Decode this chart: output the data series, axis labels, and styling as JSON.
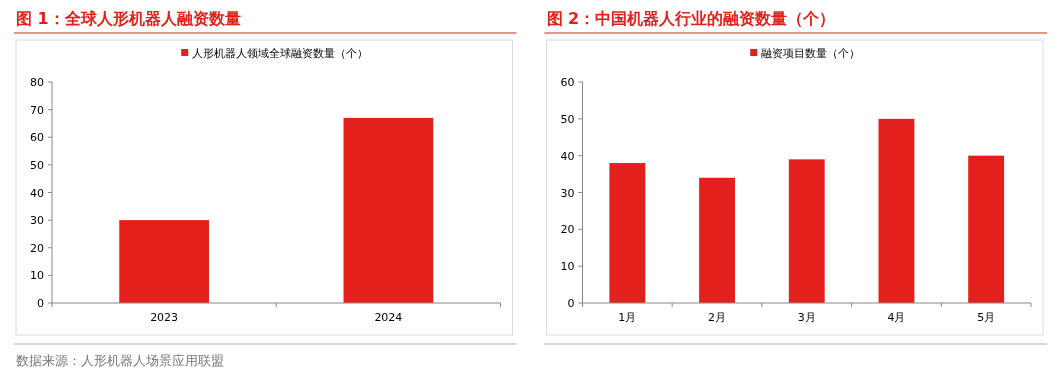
{
  "chart_data": [
    {
      "type": "bar",
      "title": "图 1：全球人形机器人融资数量",
      "categories": [
        "2023",
        "2024"
      ],
      "series": [
        {
          "name": "人形机器人领域全球融资数量（个）",
          "color": "#e3201b",
          "values": [
            30,
            67
          ]
        }
      ],
      "ylim": [
        0,
        80
      ],
      "yticks": [
        0,
        10,
        20,
        30,
        40,
        50,
        60,
        70,
        80
      ],
      "legend": "top",
      "grid": false,
      "annotations": [
        "数据来源：人形机器人场景应用联盟"
      ]
    },
    {
      "type": "bar",
      "title": "图 2：中国机器人行业的融资数量（个）",
      "categories": [
        "1月",
        "2月",
        "3月",
        "4月",
        "5月"
      ],
      "series": [
        {
          "name": "融资项目数量（个）",
          "color": "#e3201b",
          "values": [
            38,
            34,
            39,
            50,
            40
          ]
        }
      ],
      "ylim": [
        0,
        60
      ],
      "yticks": [
        0,
        10,
        20,
        30,
        40,
        50,
        60
      ],
      "legend": "top",
      "grid": false
    }
  ]
}
